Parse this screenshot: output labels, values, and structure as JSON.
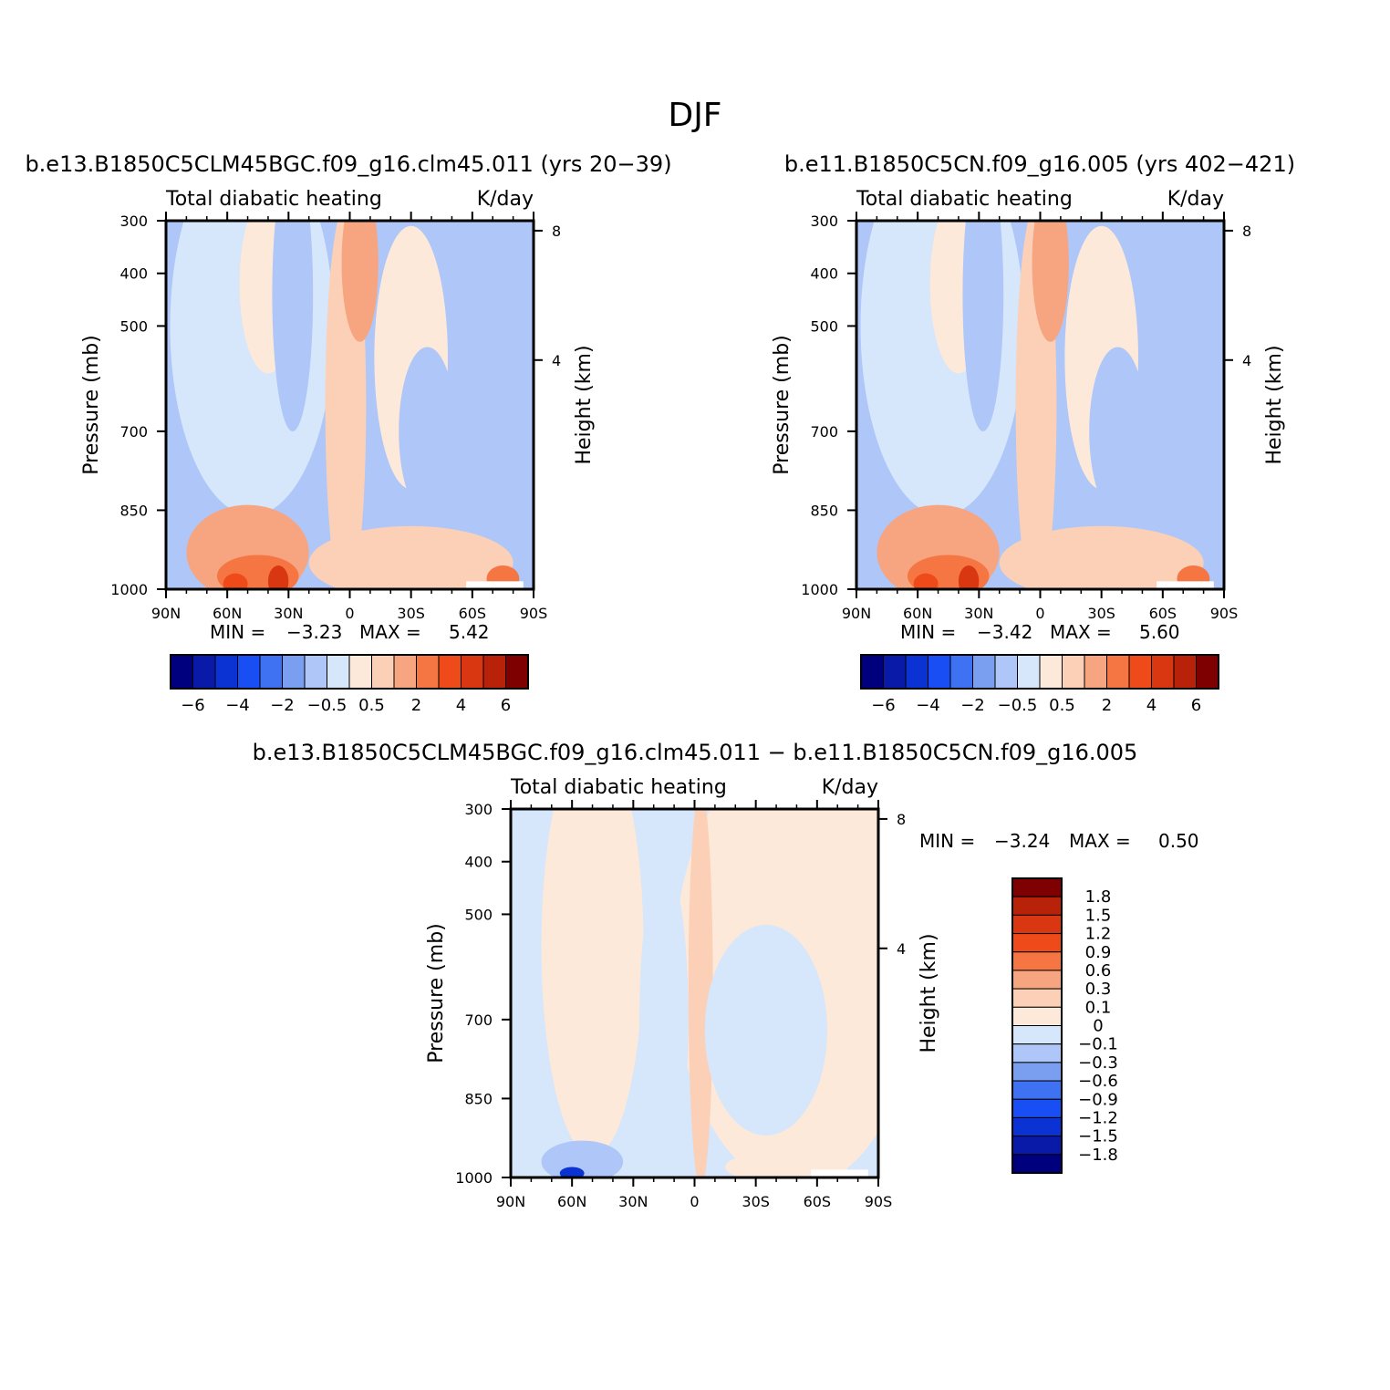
{
  "figure": {
    "season_title": "DJF",
    "field_title": "Total diabatic heating",
    "units": "K/day"
  },
  "chart_data": [
    {
      "type": "heatmap",
      "title": "b.e13.B1850C5CLM45BGC.f09_g16.clm45.011 (yrs 20−39)",
      "subtitle_left": "Total diabatic heating",
      "subtitle_right": "K/day",
      "xlabel": "",
      "ylabel": "Pressure (mb)",
      "ylabel_right": "Height (km)",
      "x_ticks": [
        "90N",
        "60N",
        "30N",
        "0",
        "30S",
        "60S",
        "90S"
      ],
      "x_tick_values": [
        90,
        60,
        30,
        0,
        -30,
        -60,
        -90
      ],
      "xlim": [
        90,
        -90
      ],
      "y_ticks": [
        "300",
        "400",
        "500",
        "700",
        "850",
        "1000"
      ],
      "y_tick_values": [
        300,
        400,
        500,
        700,
        850,
        1000
      ],
      "ylim": [
        1000,
        300
      ],
      "height_ticks": [
        "8",
        "4"
      ],
      "height_tick_values": [
        8,
        4
      ],
      "min_label": "MIN =",
      "min_value": "−3.23",
      "max_label": "MAX =",
      "max_value": "5.42",
      "contour_levels": [
        -6,
        -5,
        -4,
        -3,
        -2,
        -1,
        -0.5,
        0,
        0.5,
        1,
        2,
        3,
        4,
        5,
        6
      ],
      "colorbar_labels": [
        "−6",
        "−4",
        "−2",
        "−0.5",
        "0.5",
        "2",
        "4",
        "6"
      ],
      "colors": [
        "#00007f",
        "#0a1aa8",
        "#0b33d3",
        "#1a4ef5",
        "#3f72f2",
        "#7a9ef0",
        "#aec6f8",
        "#d6e6fb",
        "#fde9d9",
        "#fbd0b7",
        "#f7a581",
        "#f57543",
        "#ee4a1a",
        "#d93612",
        "#b82209",
        "#7f0000"
      ]
    },
    {
      "type": "heatmap",
      "title": "b.e11.B1850C5CN.f09_g16.005 (yrs 402−421)",
      "subtitle_left": "Total diabatic heating",
      "subtitle_right": "K/day",
      "xlabel": "",
      "ylabel": "Pressure (mb)",
      "ylabel_right": "Height (km)",
      "x_ticks": [
        "90N",
        "60N",
        "30N",
        "0",
        "30S",
        "60S",
        "90S"
      ],
      "x_tick_values": [
        90,
        60,
        30,
        0,
        -30,
        -60,
        -90
      ],
      "xlim": [
        90,
        -90
      ],
      "y_ticks": [
        "300",
        "400",
        "500",
        "700",
        "850",
        "1000"
      ],
      "y_tick_values": [
        300,
        400,
        500,
        700,
        850,
        1000
      ],
      "ylim": [
        1000,
        300
      ],
      "height_ticks": [
        "8",
        "4"
      ],
      "height_tick_values": [
        8,
        4
      ],
      "min_label": "MIN =",
      "min_value": "−3.42",
      "max_label": "MAX =",
      "max_value": "5.60",
      "contour_levels": [
        -6,
        -5,
        -4,
        -3,
        -2,
        -1,
        -0.5,
        0,
        0.5,
        1,
        2,
        3,
        4,
        5,
        6
      ],
      "colorbar_labels": [
        "−6",
        "−4",
        "−2",
        "−0.5",
        "0.5",
        "2",
        "4",
        "6"
      ],
      "colors": [
        "#00007f",
        "#0a1aa8",
        "#0b33d3",
        "#1a4ef5",
        "#3f72f2",
        "#7a9ef0",
        "#aec6f8",
        "#d6e6fb",
        "#fde9d9",
        "#fbd0b7",
        "#f7a581",
        "#f57543",
        "#ee4a1a",
        "#d93612",
        "#b82209",
        "#7f0000"
      ]
    },
    {
      "type": "heatmap",
      "title": "b.e13.B1850C5CLM45BGC.f09_g16.clm45.011 − b.e11.B1850C5CN.f09_g16.005",
      "subtitle_left": "Total diabatic heating",
      "subtitle_right": "K/day",
      "xlabel": "",
      "ylabel": "Pressure (mb)",
      "ylabel_right": "Height (km)",
      "x_ticks": [
        "90N",
        "60N",
        "30N",
        "0",
        "30S",
        "60S",
        "90S"
      ],
      "x_tick_values": [
        90,
        60,
        30,
        0,
        -30,
        -60,
        -90
      ],
      "xlim": [
        90,
        -90
      ],
      "y_ticks": [
        "300",
        "400",
        "500",
        "700",
        "850",
        "1000"
      ],
      "y_tick_values": [
        300,
        400,
        500,
        700,
        850,
        1000
      ],
      "ylim": [
        1000,
        300
      ],
      "height_ticks": [
        "8",
        "4"
      ],
      "height_tick_values": [
        8,
        4
      ],
      "min_label": "MIN =",
      "min_value": "−3.24",
      "max_label": "MAX =",
      "max_value": "0.50",
      "contour_levels": [
        -1.8,
        -1.5,
        -1.2,
        -0.9,
        -0.6,
        -0.3,
        -0.1,
        0,
        0.1,
        0.3,
        0.6,
        0.9,
        1.2,
        1.5,
        1.8
      ],
      "colorbar_labels": [
        "1.8",
        "1.5",
        "1.2",
        "0.9",
        "0.6",
        "0.3",
        "0.1",
        "0",
        "−0.1",
        "−0.3",
        "−0.6",
        "−0.9",
        "−1.2",
        "−1.5",
        "−1.8"
      ],
      "colors": [
        "#00007f",
        "#0a1aa8",
        "#0b33d3",
        "#1a4ef5",
        "#3f72f2",
        "#7a9ef0",
        "#aec6f8",
        "#d6e6fb",
        "#fde9d9",
        "#fbd0b7",
        "#f7a581",
        "#f57543",
        "#ee4a1a",
        "#d93612",
        "#b82209",
        "#7f0000"
      ]
    }
  ]
}
